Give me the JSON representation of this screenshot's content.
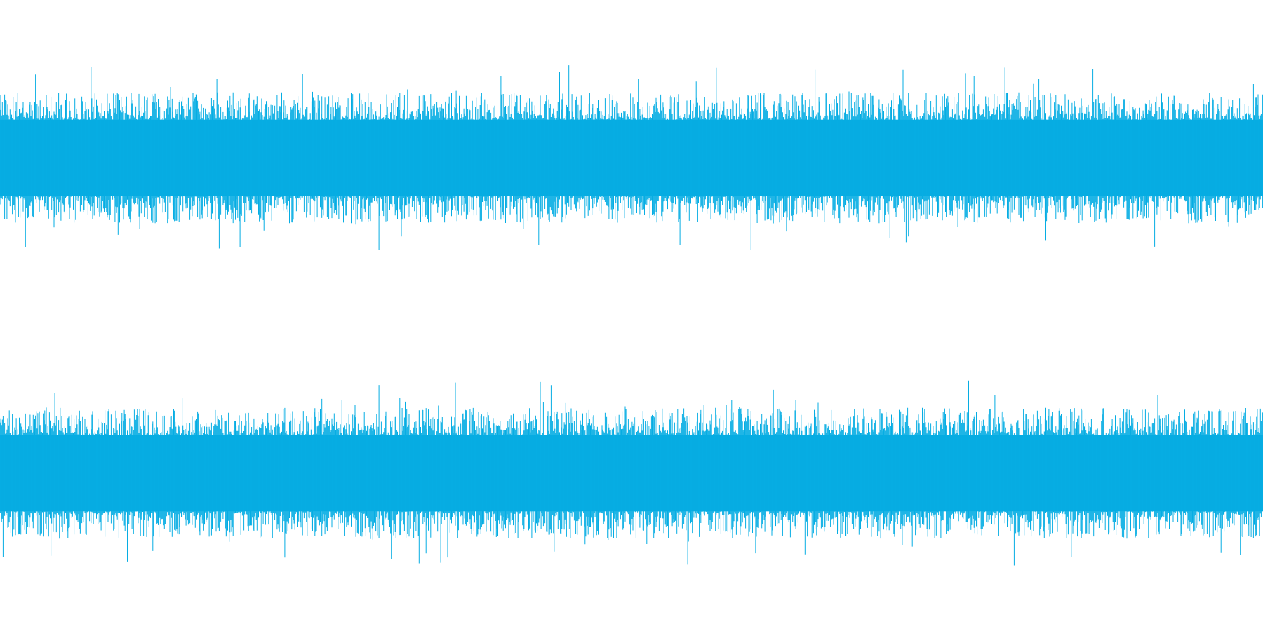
{
  "waveform": {
    "color": "#06ADE3",
    "background": "#ffffff",
    "channels": [
      {
        "name": "",
        "core_amplitude": 0.78,
        "spike_amplitude": 1.0
      },
      {
        "name": "",
        "core_amplitude": 0.78,
        "spike_amplitude": 1.0
      }
    ]
  }
}
